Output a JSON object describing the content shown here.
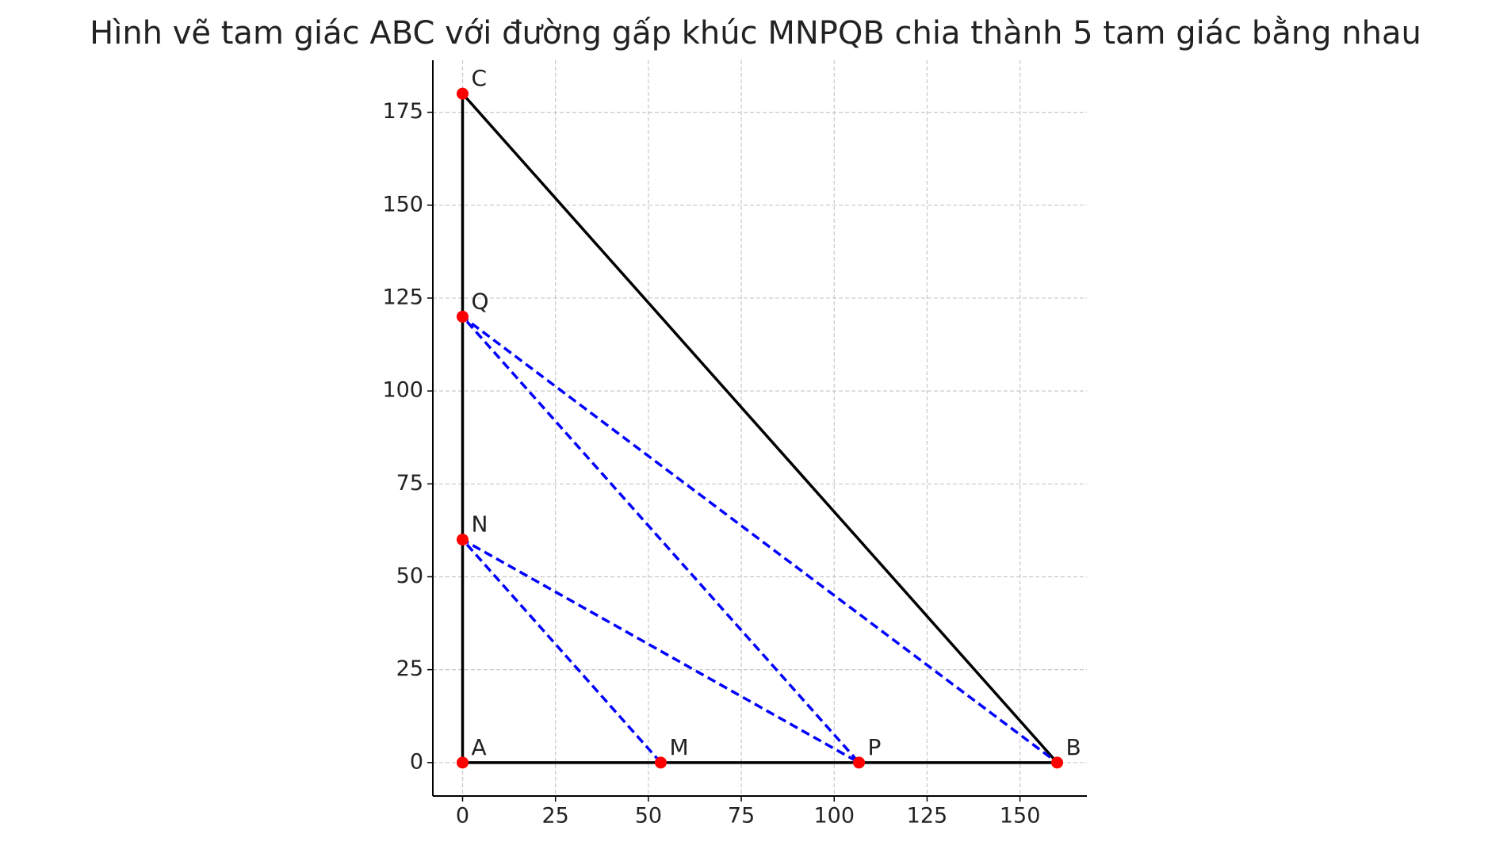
{
  "chart_data": {
    "type": "geometry",
    "title": "Hình vẽ tam giác ABC với đường gấp khúc MNPQB chia thành 5 tam giác bằng nhau",
    "xlim": [
      -8,
      168
    ],
    "ylim": [
      -9,
      189
    ],
    "xticks": [
      0,
      25,
      50,
      75,
      100,
      125,
      150
    ],
    "yticks": [
      0,
      25,
      50,
      75,
      100,
      125,
      150,
      175
    ],
    "grid": true,
    "lines": [
      {
        "color": "#000000",
        "style": "solid",
        "x": [
          0,
          160,
          0,
          0
        ],
        "y": [
          0,
          0,
          180,
          0
        ]
      },
      {
        "color": "#0000ff",
        "style": "dashed",
        "x": [
          53.33,
          0,
          106.67,
          0,
          160
        ],
        "y": [
          0,
          60,
          0,
          120,
          0
        ]
      }
    ],
    "points": {
      "color": "#ff0000",
      "labels": [
        "A",
        "B",
        "C",
        "M",
        "N",
        "P",
        "Q"
      ],
      "x": [
        0,
        160,
        0,
        53.33,
        0,
        106.67,
        0
      ],
      "y": [
        0,
        0,
        180,
        0,
        60,
        0,
        120
      ]
    }
  }
}
